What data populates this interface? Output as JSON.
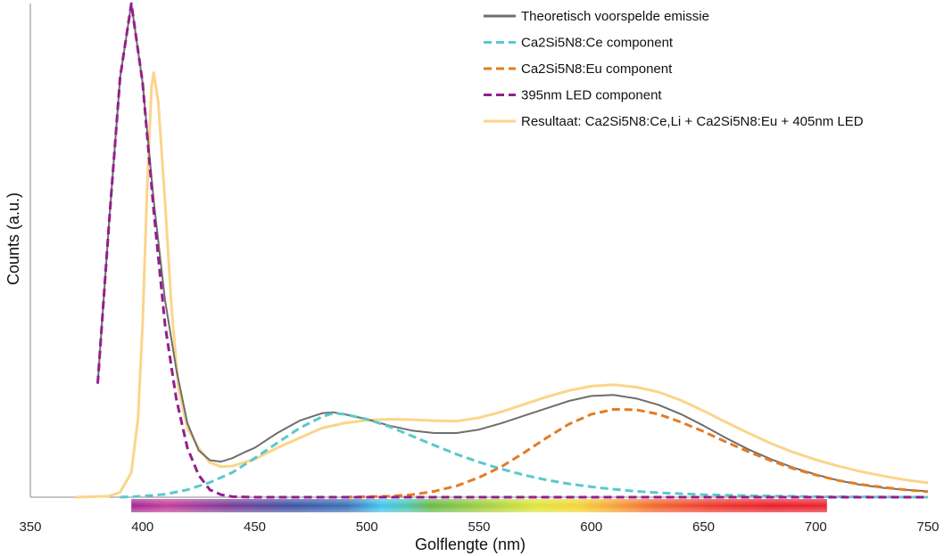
{
  "chart_data": {
    "type": "line",
    "title": "",
    "xlabel": "Golflengte (nm)",
    "ylabel": "Counts (a.u.)",
    "xlim": [
      350,
      750
    ],
    "ylim": [
      0,
      1
    ],
    "x_ticks": [
      350,
      400,
      450,
      500,
      550,
      600,
      650,
      700,
      750
    ],
    "grid": false,
    "legend_position": "top-right",
    "visible_spectrum_band": {
      "from_nm": 395,
      "to_nm": 705
    },
    "series": [
      {
        "name": "Theoretisch voorspelde emissie",
        "color": "#6e6e6e",
        "style": "solid",
        "points": [
          [
            380,
            0.23
          ],
          [
            385,
            0.55
          ],
          [
            390,
            0.85
          ],
          [
            395,
            1.0
          ],
          [
            400,
            0.84
          ],
          [
            405,
            0.6
          ],
          [
            410,
            0.4
          ],
          [
            415,
            0.26
          ],
          [
            420,
            0.15
          ],
          [
            425,
            0.095
          ],
          [
            430,
            0.075
          ],
          [
            435,
            0.072
          ],
          [
            440,
            0.079
          ],
          [
            445,
            0.09
          ],
          [
            450,
            0.1
          ],
          [
            460,
            0.13
          ],
          [
            470,
            0.155
          ],
          [
            480,
            0.17
          ],
          [
            485,
            0.172
          ],
          [
            490,
            0.168
          ],
          [
            500,
            0.158
          ],
          [
            510,
            0.145
          ],
          [
            520,
            0.135
          ],
          [
            530,
            0.13
          ],
          [
            540,
            0.13
          ],
          [
            550,
            0.137
          ],
          [
            560,
            0.15
          ],
          [
            570,
            0.165
          ],
          [
            580,
            0.18
          ],
          [
            590,
            0.195
          ],
          [
            600,
            0.205
          ],
          [
            610,
            0.207
          ],
          [
            620,
            0.2
          ],
          [
            630,
            0.187
          ],
          [
            640,
            0.168
          ],
          [
            650,
            0.145
          ],
          [
            660,
            0.12
          ],
          [
            670,
            0.097
          ],
          [
            680,
            0.077
          ],
          [
            690,
            0.06
          ],
          [
            700,
            0.046
          ],
          [
            710,
            0.034
          ],
          [
            720,
            0.025
          ],
          [
            730,
            0.019
          ],
          [
            740,
            0.015
          ],
          [
            750,
            0.012
          ]
        ]
      },
      {
        "name": "Ca2Si5N8:Ce component",
        "color": "#5bc8cc",
        "style": "dashed",
        "points": [
          [
            390,
            0.0
          ],
          [
            400,
            0.002
          ],
          [
            410,
            0.006
          ],
          [
            420,
            0.015
          ],
          [
            430,
            0.03
          ],
          [
            440,
            0.05
          ],
          [
            450,
            0.079
          ],
          [
            460,
            0.11
          ],
          [
            470,
            0.14
          ],
          [
            480,
            0.163
          ],
          [
            485,
            0.17
          ],
          [
            490,
            0.168
          ],
          [
            500,
            0.158
          ],
          [
            510,
            0.143
          ],
          [
            520,
            0.124
          ],
          [
            530,
            0.105
          ],
          [
            540,
            0.087
          ],
          [
            550,
            0.071
          ],
          [
            560,
            0.057
          ],
          [
            570,
            0.045
          ],
          [
            580,
            0.035
          ],
          [
            590,
            0.027
          ],
          [
            600,
            0.021
          ],
          [
            610,
            0.016
          ],
          [
            620,
            0.012
          ],
          [
            630,
            0.009
          ],
          [
            640,
            0.007
          ],
          [
            650,
            0.005
          ],
          [
            670,
            0.003
          ],
          [
            700,
            0.001
          ],
          [
            750,
            0.0
          ]
        ]
      },
      {
        "name": "Ca2Si5N8:Eu component",
        "color": "#e37c24",
        "style": "dashed",
        "points": [
          [
            490,
            0.0
          ],
          [
            510,
            0.002
          ],
          [
            520,
            0.005
          ],
          [
            530,
            0.012
          ],
          [
            540,
            0.023
          ],
          [
            550,
            0.04
          ],
          [
            560,
            0.062
          ],
          [
            570,
            0.09
          ],
          [
            580,
            0.12
          ],
          [
            590,
            0.148
          ],
          [
            600,
            0.168
          ],
          [
            610,
            0.178
          ],
          [
            620,
            0.177
          ],
          [
            630,
            0.168
          ],
          [
            640,
            0.152
          ],
          [
            650,
            0.133
          ],
          [
            660,
            0.112
          ],
          [
            670,
            0.092
          ],
          [
            680,
            0.074
          ],
          [
            690,
            0.058
          ],
          [
            700,
            0.045
          ],
          [
            710,
            0.034
          ],
          [
            720,
            0.026
          ],
          [
            730,
            0.02
          ],
          [
            740,
            0.015
          ],
          [
            750,
            0.011
          ]
        ]
      },
      {
        "name": "395nm LED component",
        "color": "#941e8c",
        "style": "dashed",
        "points": [
          [
            380,
            0.23
          ],
          [
            385,
            0.55
          ],
          [
            390,
            0.85
          ],
          [
            395,
            1.0
          ],
          [
            400,
            0.84
          ],
          [
            405,
            0.58
          ],
          [
            410,
            0.35
          ],
          [
            415,
            0.2
          ],
          [
            420,
            0.1
          ],
          [
            425,
            0.045
          ],
          [
            430,
            0.015
          ],
          [
            435,
            0.005
          ],
          [
            440,
            0.001
          ],
          [
            450,
            0.0
          ],
          [
            500,
            0.0
          ],
          [
            600,
            0.0
          ],
          [
            700,
            0.0
          ],
          [
            750,
            0.0
          ]
        ]
      },
      {
        "name": "Resultaat: Ca2Si5N8:Ce,Li + Ca2Si5N8:Eu + 405nm LED",
        "color": "#fad58a",
        "style": "solid",
        "points": [
          [
            370,
            0.0
          ],
          [
            385,
            0.002
          ],
          [
            390,
            0.01
          ],
          [
            395,
            0.05
          ],
          [
            398,
            0.16
          ],
          [
            400,
            0.35
          ],
          [
            402,
            0.62
          ],
          [
            404,
            0.83
          ],
          [
            405,
            0.86
          ],
          [
            407,
            0.8
          ],
          [
            410,
            0.6
          ],
          [
            413,
            0.38
          ],
          [
            416,
            0.22
          ],
          [
            420,
            0.14
          ],
          [
            425,
            0.1
          ],
          [
            430,
            0.07
          ],
          [
            435,
            0.062
          ],
          [
            440,
            0.063
          ],
          [
            450,
            0.077
          ],
          [
            460,
            0.1
          ],
          [
            470,
            0.12
          ],
          [
            480,
            0.14
          ],
          [
            490,
            0.15
          ],
          [
            500,
            0.156
          ],
          [
            510,
            0.158
          ],
          [
            520,
            0.157
          ],
          [
            530,
            0.155
          ],
          [
            540,
            0.154
          ],
          [
            550,
            0.161
          ],
          [
            560,
            0.173
          ],
          [
            570,
            0.188
          ],
          [
            580,
            0.203
          ],
          [
            590,
            0.216
          ],
          [
            600,
            0.225
          ],
          [
            610,
            0.228
          ],
          [
            620,
            0.223
          ],
          [
            630,
            0.213
          ],
          [
            640,
            0.196
          ],
          [
            650,
            0.175
          ],
          [
            660,
            0.152
          ],
          [
            670,
            0.13
          ],
          [
            680,
            0.109
          ],
          [
            690,
            0.091
          ],
          [
            700,
            0.076
          ],
          [
            710,
            0.063
          ],
          [
            720,
            0.052
          ],
          [
            730,
            0.043
          ],
          [
            740,
            0.035
          ],
          [
            750,
            0.029
          ]
        ]
      }
    ]
  }
}
